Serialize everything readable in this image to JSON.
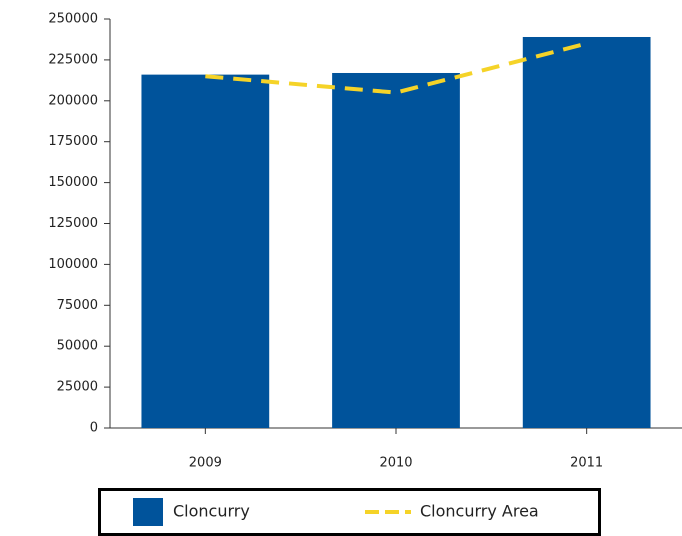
{
  "chart_data": {
    "type": "bar",
    "categories": [
      "2009",
      "2010",
      "2011"
    ],
    "series": [
      {
        "name": "Cloncurry",
        "type": "bar",
        "color": "#00539b",
        "values": [
          216000,
          217000,
          239000
        ]
      },
      {
        "name": "Cloncurry Area",
        "type": "line",
        "color": "#f5d328",
        "values": [
          215000,
          205000,
          235000
        ]
      }
    ],
    "ylim": [
      0,
      250000
    ],
    "yticks": [
      0,
      25000,
      50000,
      75000,
      100000,
      125000,
      150000,
      175000,
      200000,
      225000,
      250000
    ]
  }
}
